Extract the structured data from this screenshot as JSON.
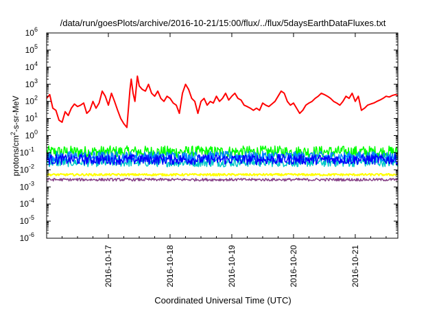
{
  "chart_data": {
    "type": "line",
    "title": "/data/run/goesPlots/archive/2016-10-21/15:00/flux/../flux/5daysEarthDataFluxes.txt",
    "xlabel": "Coordinated Universal Time (UTC)",
    "ylabel_parts": [
      "protons/cm",
      "2",
      "-s-sr-MeV"
    ],
    "yscale": "log",
    "ylim_exp": [
      -6,
      6
    ],
    "y_ticks": [
      {
        "base": "10",
        "exp": "6"
      },
      {
        "base": "10",
        "exp": "5"
      },
      {
        "base": "10",
        "exp": "4"
      },
      {
        "base": "10",
        "exp": "3"
      },
      {
        "base": "10",
        "exp": "2"
      },
      {
        "base": "10",
        "exp": "1"
      },
      {
        "base": "10",
        "exp": "0"
      },
      {
        "base": "10",
        "exp": "-1"
      },
      {
        "base": "10",
        "exp": "-2"
      },
      {
        "base": "10",
        "exp": "-3"
      },
      {
        "base": "10",
        "exp": "-4"
      },
      {
        "base": "10",
        "exp": "-5"
      },
      {
        "base": "10",
        "exp": "-6"
      }
    ],
    "x_domain_days": [
      16.0,
      21.69
    ],
    "x_ticks": [
      "2016-10-17",
      "2016-10-18",
      "2016-10-19",
      "2016-10-20",
      "2016-10-21"
    ],
    "x_tick_days": [
      17,
      18,
      19,
      20,
      21
    ],
    "grid": false,
    "series": [
      {
        "color": "#ff0000",
        "width": 2,
        "points": [
          [
            16.0,
            150
          ],
          [
            16.05,
            250
          ],
          [
            16.1,
            40
          ],
          [
            16.15,
            30
          ],
          [
            16.2,
            8
          ],
          [
            16.25,
            6
          ],
          [
            16.3,
            25
          ],
          [
            16.35,
            15
          ],
          [
            16.4,
            40
          ],
          [
            16.45,
            70
          ],
          [
            16.5,
            50
          ],
          [
            16.55,
            60
          ],
          [
            16.6,
            80
          ],
          [
            16.65,
            20
          ],
          [
            16.7,
            30
          ],
          [
            16.75,
            100
          ],
          [
            16.8,
            40
          ],
          [
            16.85,
            80
          ],
          [
            16.9,
            400
          ],
          [
            16.95,
            200
          ],
          [
            17.0,
            60
          ],
          [
            17.05,
            300
          ],
          [
            17.1,
            100
          ],
          [
            17.15,
            30
          ],
          [
            17.2,
            10
          ],
          [
            17.25,
            5
          ],
          [
            17.3,
            3
          ],
          [
            17.35,
            500
          ],
          [
            17.37,
            2000
          ],
          [
            17.4,
            300
          ],
          [
            17.43,
            100
          ],
          [
            17.47,
            3000
          ],
          [
            17.5,
            800
          ],
          [
            17.55,
            500
          ],
          [
            17.6,
            400
          ],
          [
            17.65,
            1000
          ],
          [
            17.7,
            300
          ],
          [
            17.75,
            200
          ],
          [
            17.8,
            400
          ],
          [
            17.85,
            150
          ],
          [
            17.9,
            100
          ],
          [
            17.95,
            200
          ],
          [
            18.0,
            150
          ],
          [
            18.05,
            80
          ],
          [
            18.1,
            60
          ],
          [
            18.15,
            20
          ],
          [
            18.2,
            300
          ],
          [
            18.25,
            1000
          ],
          [
            18.3,
            500
          ],
          [
            18.35,
            150
          ],
          [
            18.4,
            100
          ],
          [
            18.45,
            20
          ],
          [
            18.5,
            100
          ],
          [
            18.55,
            150
          ],
          [
            18.6,
            60
          ],
          [
            18.65,
            100
          ],
          [
            18.7,
            80
          ],
          [
            18.75,
            200
          ],
          [
            18.8,
            100
          ],
          [
            18.85,
            150
          ],
          [
            18.9,
            300
          ],
          [
            18.95,
            120
          ],
          [
            19.0,
            200
          ],
          [
            19.05,
            300
          ],
          [
            19.1,
            150
          ],
          [
            19.15,
            120
          ],
          [
            19.2,
            60
          ],
          [
            19.25,
            50
          ],
          [
            19.3,
            40
          ],
          [
            19.35,
            30
          ],
          [
            19.4,
            40
          ],
          [
            19.45,
            30
          ],
          [
            19.5,
            80
          ],
          [
            19.55,
            60
          ],
          [
            19.6,
            50
          ],
          [
            19.65,
            70
          ],
          [
            19.7,
            100
          ],
          [
            19.75,
            200
          ],
          [
            19.8,
            400
          ],
          [
            19.85,
            300
          ],
          [
            19.9,
            100
          ],
          [
            19.95,
            60
          ],
          [
            20.0,
            80
          ],
          [
            20.05,
            40
          ],
          [
            20.1,
            20
          ],
          [
            20.15,
            30
          ],
          [
            20.2,
            60
          ],
          [
            20.25,
            80
          ],
          [
            20.3,
            100
          ],
          [
            20.35,
            150
          ],
          [
            20.4,
            200
          ],
          [
            20.45,
            300
          ],
          [
            20.5,
            250
          ],
          [
            20.55,
            200
          ],
          [
            20.6,
            150
          ],
          [
            20.65,
            100
          ],
          [
            20.7,
            80
          ],
          [
            20.75,
            60
          ],
          [
            20.8,
            100
          ],
          [
            20.85,
            200
          ],
          [
            20.9,
            150
          ],
          [
            20.95,
            300
          ],
          [
            21.0,
            100
          ],
          [
            21.05,
            200
          ],
          [
            21.1,
            30
          ],
          [
            21.15,
            40
          ],
          [
            21.2,
            60
          ],
          [
            21.25,
            70
          ],
          [
            21.3,
            80
          ],
          [
            21.35,
            100
          ],
          [
            21.4,
            120
          ],
          [
            21.45,
            150
          ],
          [
            21.5,
            200
          ],
          [
            21.55,
            180
          ],
          [
            21.6,
            220
          ],
          [
            21.65,
            250
          ],
          [
            21.69,
            230
          ]
        ]
      },
      {
        "color": "#00ff00",
        "width": 1.5,
        "band": [
          0.05,
          0.25
        ]
      },
      {
        "color": "#00c8c8",
        "width": 1.5,
        "band": [
          0.015,
          0.05
        ]
      },
      {
        "color": "#0088ff",
        "width": 1.5,
        "band": [
          0.03,
          0.12
        ]
      },
      {
        "color": "#0000ff",
        "width": 1.5,
        "band": [
          0.02,
          0.08
        ]
      },
      {
        "color": "#ffff00",
        "width": 2,
        "band": [
          0.0045,
          0.006
        ]
      },
      {
        "color": "#884488",
        "width": 1.5,
        "band": [
          0.0022,
          0.0032
        ]
      }
    ]
  }
}
